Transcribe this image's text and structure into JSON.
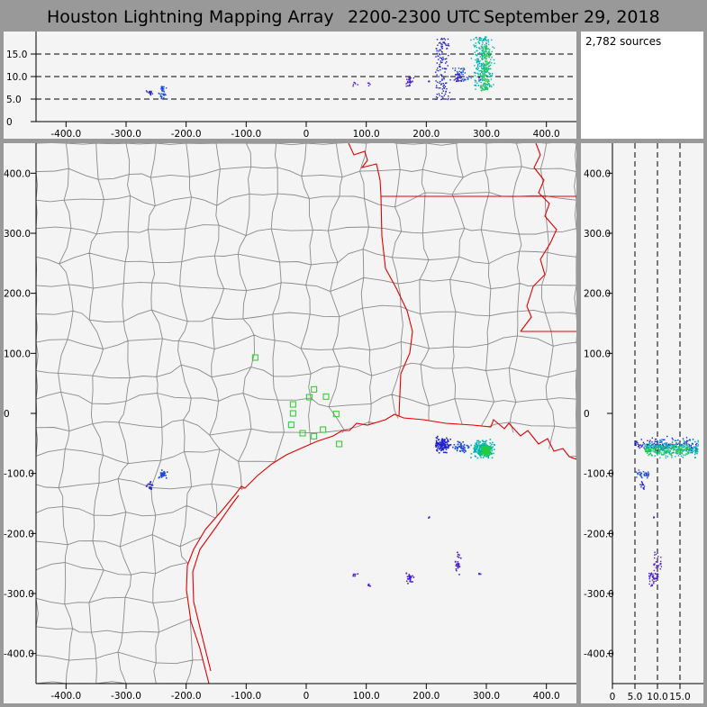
{
  "title": "Houston Lightning Mapping Array",
  "time_range": "2200-2300 UTC",
  "date": "September 29, 2018",
  "source_count": "2,782 sources",
  "colors": {
    "frame": "#999999",
    "panel": "#f4f4f4",
    "county_lines": "#8a8a8a",
    "state_coast_lines": "#e00000",
    "stations": "#22cc22",
    "sources_early": "#2222cc",
    "sources_mid": "#00b4b4",
    "sources_late": "#22cc44"
  },
  "axes": {
    "x_ticks": [
      {
        "value": -400,
        "label": "-400.0"
      },
      {
        "value": -300,
        "label": "-300.0"
      },
      {
        "value": -200,
        "label": "-200.0"
      },
      {
        "value": -100,
        "label": "-100.0"
      },
      {
        "value": 0,
        "label": "0"
      },
      {
        "value": 100,
        "label": "100.0"
      },
      {
        "value": 200,
        "label": "200.0"
      },
      {
        "value": 300,
        "label": "300.0"
      },
      {
        "value": 400,
        "label": "400.0"
      }
    ],
    "y_ticks": [
      {
        "value": 400,
        "label": "400.0"
      },
      {
        "value": 300,
        "label": "300.0"
      },
      {
        "value": 200,
        "label": "200.0"
      },
      {
        "value": 100,
        "label": "100.0"
      },
      {
        "value": 0,
        "label": "0"
      },
      {
        "value": -100,
        "label": "-100.0"
      },
      {
        "value": -200,
        "label": "-200.0"
      },
      {
        "value": -300,
        "label": "-300.0"
      },
      {
        "value": -400,
        "label": "-400.0"
      }
    ],
    "alt_ticks": [
      {
        "value": 0,
        "label": "0"
      },
      {
        "value": 5,
        "label": "5.0"
      },
      {
        "value": 10,
        "label": "10.0"
      },
      {
        "value": 15,
        "label": "15.0"
      }
    ],
    "xy_range_km": [
      -450,
      450
    ],
    "alt_range_km": [
      0,
      20
    ]
  },
  "stations_km": [
    [
      -85,
      93
    ],
    [
      -22,
      15
    ],
    [
      5,
      27
    ],
    [
      13,
      40
    ],
    [
      33,
      28
    ],
    [
      -22,
      0
    ],
    [
      -25,
      -19
    ],
    [
      -6,
      -33
    ],
    [
      13,
      -38
    ],
    [
      28,
      -27
    ],
    [
      50,
      -1
    ],
    [
      55,
      -51
    ]
  ],
  "clusters": [
    {
      "x": 225,
      "y": -52,
      "sx": 6,
      "sy": 6,
      "zmin": 5,
      "zmax": 19,
      "n": 130,
      "c": "#2222cc"
    },
    {
      "x": 255,
      "y": -55,
      "sx": 6,
      "sy": 4,
      "zmin": 9,
      "zmax": 12,
      "n": 50,
      "c": "#1e4ad6"
    },
    {
      "x": 294,
      "y": -58,
      "sx": 8,
      "sy": 6,
      "zmin": 7,
      "zmax": 19,
      "n": 260,
      "c": "#00b4b4"
    },
    {
      "x": 298,
      "y": -60,
      "sx": 4,
      "sy": 4,
      "zmin": 7,
      "zmax": 17,
      "n": 120,
      "c": "#22cc44"
    },
    {
      "x": -240,
      "y": -100,
      "sx": 3,
      "sy": 3,
      "zmin": 5,
      "zmax": 8,
      "n": 40,
      "c": "#1e4ad6"
    },
    {
      "x": -262,
      "y": -120,
      "sx": 3,
      "sy": 3,
      "zmin": 6,
      "zmax": 7,
      "n": 15,
      "c": "#2222cc"
    },
    {
      "x": 170,
      "y": -272,
      "sx": 3,
      "sy": 4,
      "zmin": 8,
      "zmax": 10,
      "n": 30,
      "c": "#4a1fd0"
    },
    {
      "x": 250,
      "y": -248,
      "sx": 3,
      "sy": 8,
      "zmin": 9,
      "zmax": 11,
      "n": 25,
      "c": "#4a1fd0"
    },
    {
      "x": 80,
      "y": -268,
      "sx": 2,
      "sy": 2,
      "zmin": 8,
      "zmax": 9,
      "n": 6,
      "c": "#4a1fd0"
    },
    {
      "x": 103,
      "y": -285,
      "sx": 2,
      "sy": 2,
      "zmin": 8,
      "zmax": 9,
      "n": 5,
      "c": "#4a1fd0"
    },
    {
      "x": 203,
      "y": -172,
      "sx": 1,
      "sy": 1,
      "zmin": 9,
      "zmax": 10,
      "n": 3,
      "c": "#4a1fd0"
    },
    {
      "x": 285,
      "y": -265,
      "sx": 2,
      "sy": 2,
      "zmin": 9,
      "zmax": 10,
      "n": 4,
      "c": "#4a1fd0"
    }
  ]
}
